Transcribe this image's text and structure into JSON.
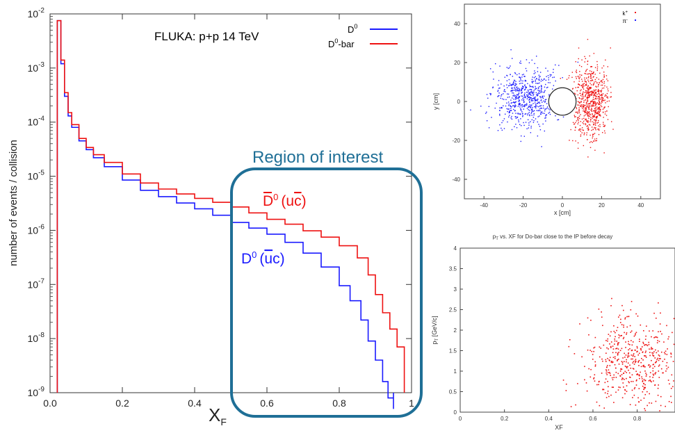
{
  "chart_data": [
    {
      "type": "line",
      "title": "FLUKA: p+p 14 TeV",
      "xlabel": "X",
      "xlabel_sub": "F",
      "ylabel": "number of events / collision",
      "xlim": [
        0.0,
        1.0
      ],
      "ylim": [
        1e-09,
        0.01
      ],
      "yscale": "log",
      "x_ticks": [
        "0.0",
        "0.2",
        "0.4",
        "0.6",
        "0.8",
        "1"
      ],
      "y_ticks": [
        {
          "mant": "10",
          "exp": "-9"
        },
        {
          "mant": "10",
          "exp": "-8"
        },
        {
          "mant": "10",
          "exp": "-7"
        },
        {
          "mant": "10",
          "exp": "-6"
        },
        {
          "mant": "10",
          "exp": "-5"
        },
        {
          "mant": "10",
          "exp": "-4"
        },
        {
          "mant": "10",
          "exp": "-3"
        },
        {
          "mant": "10",
          "exp": "-2"
        }
      ],
      "legend_position": "top-right",
      "legend": [
        {
          "base": "D",
          "sup": "0",
          "suffix": "",
          "color": "#1a1aff"
        },
        {
          "base": "D",
          "sup": "0",
          "suffix": "-bar",
          "color": "#ee1111"
        }
      ],
      "series": [
        {
          "name": "D0",
          "color": "#1a1aff",
          "x": [
            0.02,
            0.03,
            0.04,
            0.05,
            0.06,
            0.08,
            0.1,
            0.12,
            0.15,
            0.2,
            0.25,
            0.3,
            0.35,
            0.4,
            0.45,
            0.5,
            0.55,
            0.6,
            0.65,
            0.7,
            0.75,
            0.8,
            0.83,
            0.86,
            0.88,
            0.9,
            0.92,
            0.935,
            0.95
          ],
          "y": [
            0.0075,
            0.0012,
            0.0003,
            0.00013,
            8e-05,
            4.5e-05,
            3.1e-05,
            2.2e-05,
            1.5e-05,
            8.5e-06,
            5.5e-06,
            4.2e-06,
            3.2e-06,
            2.5e-06,
            1.9e-06,
            1.4e-06,
            1.1e-06,
            8.5e-07,
            6e-07,
            3.8e-07,
            2.1e-07,
            9.5e-08,
            5e-08,
            2.2e-08,
            9e-09,
            4e-09,
            1.6e-09,
            8e-10,
            5e-10
          ]
        },
        {
          "name": "D0-bar",
          "color": "#ee1111",
          "x": [
            0.02,
            0.03,
            0.04,
            0.05,
            0.06,
            0.08,
            0.1,
            0.12,
            0.15,
            0.2,
            0.25,
            0.3,
            0.35,
            0.4,
            0.45,
            0.5,
            0.55,
            0.6,
            0.65,
            0.7,
            0.75,
            0.8,
            0.85,
            0.88,
            0.9,
            0.92,
            0.94,
            0.96,
            0.98
          ],
          "y": [
            0.0075,
            0.0014,
            0.00035,
            0.00015,
            9e-05,
            5e-05,
            3.4e-05,
            2.5e-05,
            1.8e-05,
            1.1e-05,
            7.5e-06,
            5.8e-06,
            4.7e-06,
            3.9e-06,
            3.3e-06,
            2.7e-06,
            2.1e-06,
            1.6e-06,
            1.3e-06,
            9.8e-07,
            7.5e-07,
            5.2e-07,
            3.1e-07,
            1.5e-07,
            6.5e-08,
            3e-08,
            1.5e-08,
            7e-09,
            2.5e-09
          ]
        }
      ],
      "annotations": {
        "region": "Region of interest",
        "d0bar_label": {
          "base": "D",
          "sup": "0",
          "paren": "(u",
          "cbar": "c",
          "close": ")"
        },
        "d0_label": {
          "base": "D",
          "sup": "0",
          "paren": "(",
          "ubar": "u",
          "c": "c",
          "close": ")"
        }
      }
    },
    {
      "type": "scatter",
      "xlabel": "x [cm]",
      "ylabel": "y [cm]",
      "xlim": [
        -50,
        50
      ],
      "ylim": [
        -50,
        50
      ],
      "x_ticks": [
        "-40",
        "-20",
        "0",
        "20",
        "40"
      ],
      "y_ticks": [
        "-40",
        "-20",
        "0",
        "20",
        "40"
      ],
      "legend_position": "top-right",
      "legend": [
        {
          "label": "k",
          "sup": "+",
          "color": "#ee1111"
        },
        {
          "label": "π",
          "sup": "-",
          "color": "#1a1aff"
        }
      ],
      "series": [
        {
          "name": "k+",
          "color": "#ee1111",
          "center": [
            14,
            0
          ],
          "spread": [
            5,
            10
          ],
          "n": 700
        },
        {
          "name": "π-",
          "color": "#1a1aff",
          "center": [
            -19,
            3
          ],
          "spread": [
            8,
            8
          ],
          "n": 650
        }
      ],
      "circle": {
        "center": [
          0,
          0
        ],
        "radius": 7
      }
    },
    {
      "type": "scatter",
      "title_parts": [
        "p",
        "T",
        " vs. XF for Do-bar close to the IP before decay"
      ],
      "xlabel": "XF",
      "ylabel": "p",
      "ylabel_sub": "T",
      "ylabel_unit": " [GeV/c]",
      "xlim": [
        0,
        1
      ],
      "ylim": [
        0,
        4
      ],
      "x_ticks": [
        "0",
        "0.2",
        "0.4",
        "0.6",
        "0.8"
      ],
      "y_ticks": [
        "0",
        "0.5",
        "1",
        "1.5",
        "2",
        "2.5",
        "3",
        "3.5",
        "4"
      ],
      "series": [
        {
          "name": "Do-bar",
          "color": "#ee1111",
          "center": [
            0.78,
            1.25
          ],
          "spread": [
            0.11,
            0.55
          ],
          "n": 520
        }
      ]
    }
  ]
}
